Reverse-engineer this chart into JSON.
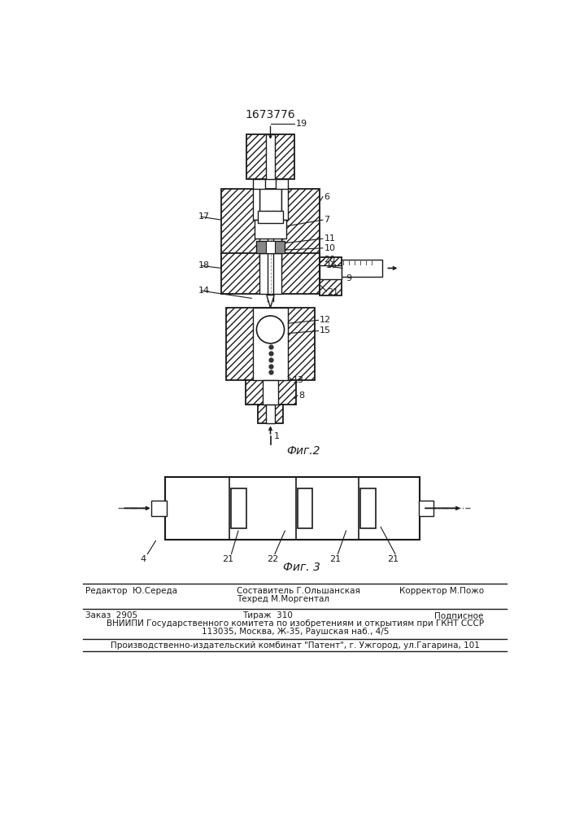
{
  "patent_number": "1673776",
  "fig2_label": "Фиг.2",
  "fig3_label": "Фиг. 3",
  "bg_color": "#ffffff",
  "line_color": "#1a1a1a",
  "footer": {
    "line1_left": "Редактор  Ю.Середа",
    "line1_center_1": "Составитель Г.Ольшанская",
    "line1_center_2": "Техред М.Моргентал",
    "line1_right": "Корректор М.Пожо",
    "line2_left": "Заказ  2905",
    "line2_center": "Тираж  310",
    "line2_right": "Подписное",
    "line3": "ВНИИПИ Государственного комитета по изобретениям и открытиям при ГКНТ СССР",
    "line4": "113035, Москва, Ж-35, Раушская наб., 4/5",
    "line5": "Производственно-издательский комбинат \"Патент\", г. Ужгород, ул.Гагарина, 101"
  }
}
